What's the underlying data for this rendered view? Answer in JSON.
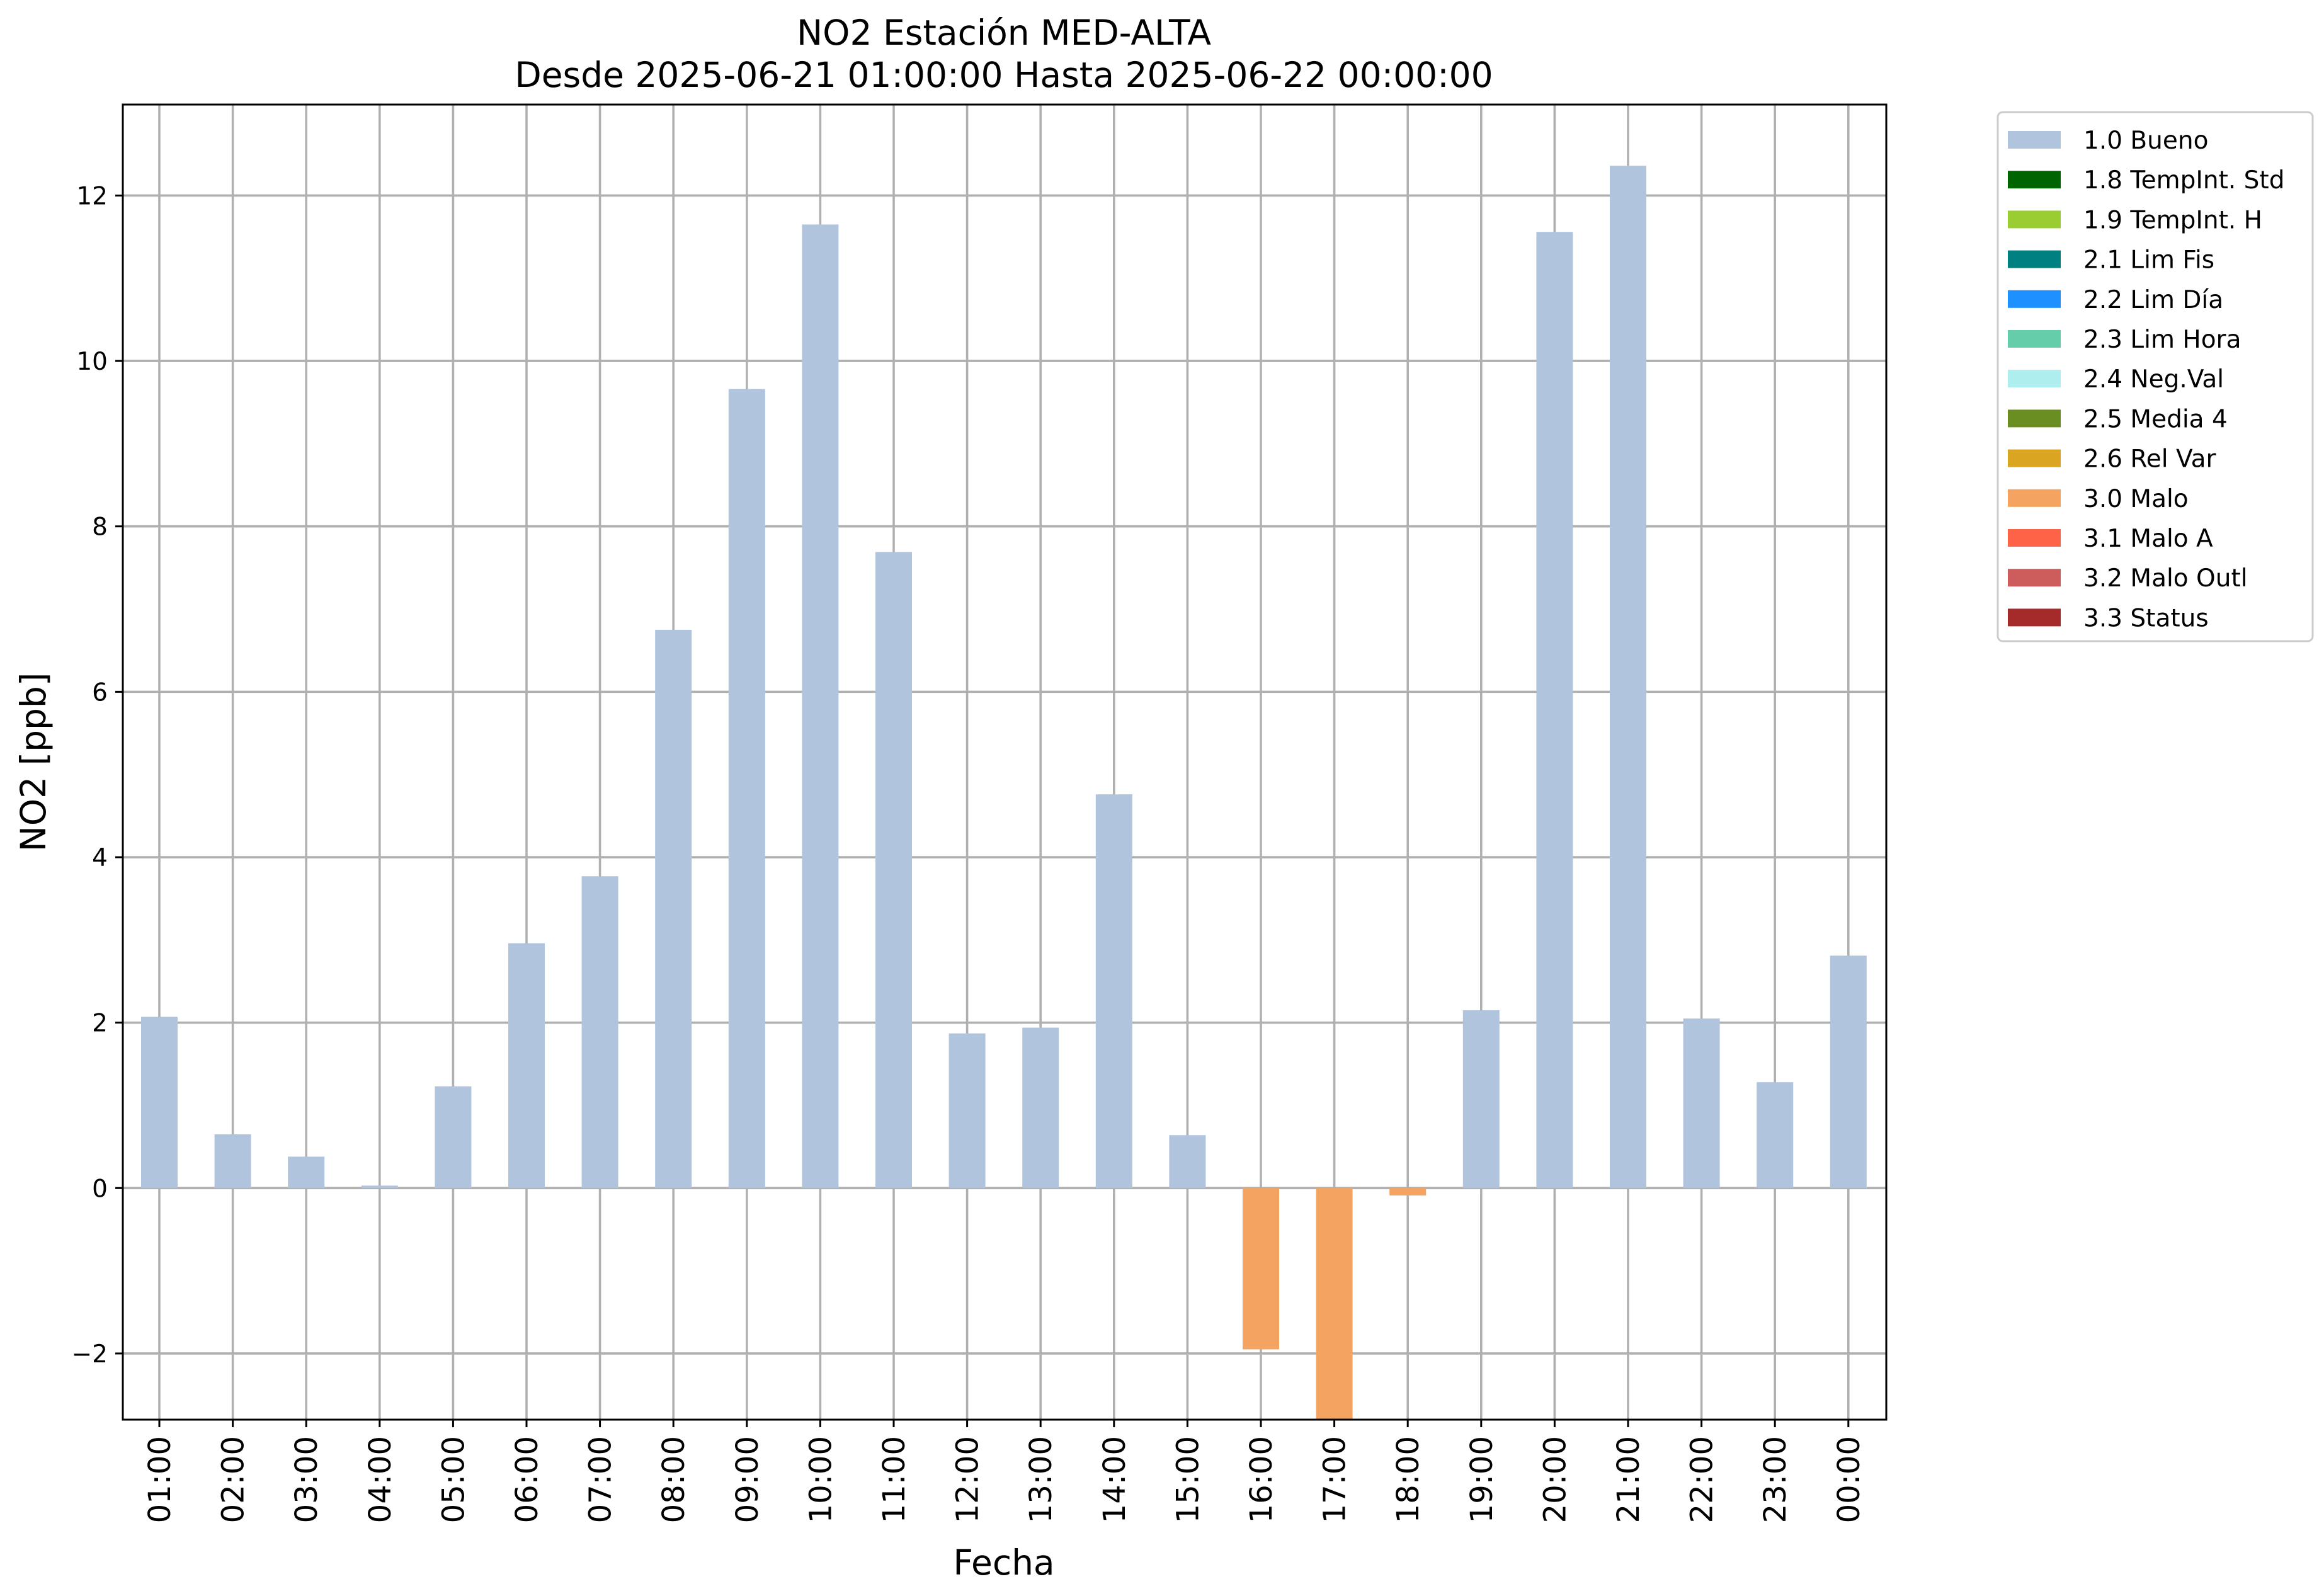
{
  "chart_data": {
    "type": "bar",
    "title": "NO2 Estación MED-ALTA",
    "subtitle": "Desde 2025-06-21 01:00:00 Hasta 2025-06-22 00:00:00",
    "xlabel": "Fecha",
    "ylabel": "NO2 [ppb]",
    "ylim": [
      -2.8,
      13.1
    ],
    "yticks": [
      -2,
      0,
      2,
      4,
      6,
      8,
      10,
      12
    ],
    "ytick_labels": [
      "−2",
      "0",
      "2",
      "4",
      "6",
      "8",
      "10",
      "12"
    ],
    "grid": true,
    "legend_position": "outside top-right",
    "categories": [
      "01:00",
      "02:00",
      "03:00",
      "04:00",
      "05:00",
      "06:00",
      "07:00",
      "08:00",
      "09:00",
      "10:00",
      "11:00",
      "12:00",
      "13:00",
      "14:00",
      "15:00",
      "16:00",
      "17:00",
      "18:00",
      "19:00",
      "20:00",
      "21:00",
      "22:00",
      "23:00",
      "00:00"
    ],
    "values": [
      2.07,
      0.65,
      0.38,
      0.03,
      1.23,
      2.96,
      3.77,
      6.75,
      9.66,
      11.65,
      7.69,
      1.87,
      1.94,
      4.76,
      0.64,
      -1.95,
      -2.85,
      -0.09,
      2.15,
      11.56,
      12.36,
      2.05,
      1.28,
      2.81
    ],
    "flags": [
      "1.0 Bueno",
      "1.0 Bueno",
      "1.0 Bueno",
      "1.0 Bueno",
      "1.0 Bueno",
      "1.0 Bueno",
      "1.0 Bueno",
      "1.0 Bueno",
      "1.0 Bueno",
      "1.0 Bueno",
      "1.0 Bueno",
      "1.0 Bueno",
      "1.0 Bueno",
      "1.0 Bueno",
      "1.0 Bueno",
      "3.0 Malo",
      "3.0 Malo",
      "3.0 Malo",
      "1.0 Bueno",
      "1.0 Bueno",
      "1.0 Bueno",
      "1.0 Bueno",
      "1.0 Bueno",
      "1.0 Bueno"
    ],
    "legend": [
      {
        "label": "1.0 Bueno",
        "color": "#b0c4de"
      },
      {
        "label": "1.8 TempInt. Std",
        "color": "#006400"
      },
      {
        "label": "1.9 TempInt. H",
        "color": "#9acd32"
      },
      {
        "label": "2.1 Lim Fis",
        "color": "#008080"
      },
      {
        "label": "2.2 Lim Día",
        "color": "#1e90ff"
      },
      {
        "label": "2.3 Lim Hora",
        "color": "#66cdaa"
      },
      {
        "label": "2.4 Neg.Val",
        "color": "#afeeee"
      },
      {
        "label": "2.5 Media 4",
        "color": "#6b8e23"
      },
      {
        "label": "2.6 Rel Var",
        "color": "#daa520"
      },
      {
        "label": "3.0 Malo",
        "color": "#f4a460"
      },
      {
        "label": "3.1 Malo A",
        "color": "#ff6347"
      },
      {
        "label": "3.2 Malo Outl",
        "color": "#cd5c5c"
      },
      {
        "label": "3.3 Status",
        "color": "#a52a2a"
      }
    ]
  }
}
